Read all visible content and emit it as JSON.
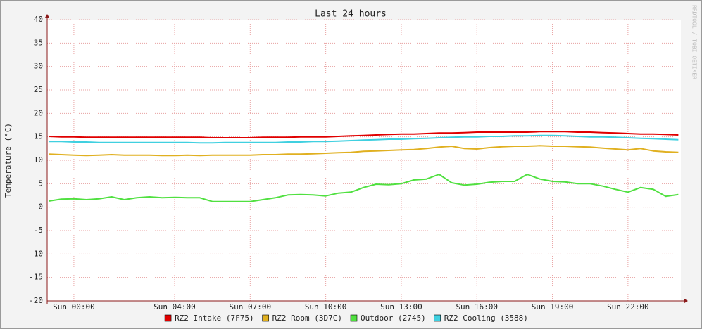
{
  "chart_data": {
    "type": "line",
    "title": "Last 24 hours",
    "y_label": "Temperature (°C)",
    "watermark": "RRDTOOL / TOBI OETIKER",
    "grid": true,
    "legend": "bottom",
    "xlim": [
      -1.06,
      24.1
    ],
    "xticks": [
      {
        "value": 0,
        "label": "Sun 00:00"
      },
      {
        "value": 4,
        "label": "Sun 04:00"
      },
      {
        "value": 7,
        "label": "Sun 07:00"
      },
      {
        "value": 10,
        "label": "Sun 10:00"
      },
      {
        "value": 13,
        "label": "Sun 13:00"
      },
      {
        "value": 16,
        "label": "Sun 16:00"
      },
      {
        "value": 19,
        "label": "Sun 19:00"
      },
      {
        "value": 22,
        "label": "Sun 22:00"
      }
    ],
    "ylim": [
      -20,
      40
    ],
    "yticks": [
      -20,
      -15,
      -10,
      -5,
      0,
      5,
      10,
      15,
      20,
      25,
      30,
      35,
      40
    ],
    "x": [
      -1,
      -0.5,
      0,
      0.5,
      1,
      1.5,
      2,
      2.5,
      3,
      3.5,
      4,
      4.5,
      5,
      5.5,
      6,
      6.5,
      7,
      7.5,
      8,
      8.5,
      9,
      9.5,
      10,
      10.5,
      11,
      11.5,
      12,
      12.5,
      13,
      13.5,
      14,
      14.5,
      15,
      15.5,
      16,
      16.5,
      17,
      17.5,
      18,
      18.5,
      19,
      19.5,
      20,
      20.5,
      21,
      21.5,
      22,
      22.5,
      23,
      23.5,
      24
    ],
    "series": [
      {
        "name": "RZ2 Intake (7F75)",
        "color": "#e00000",
        "values": [
          15.1,
          15.0,
          15.0,
          14.9,
          14.9,
          14.9,
          14.9,
          14.9,
          14.9,
          14.9,
          14.9,
          14.9,
          14.9,
          14.8,
          14.8,
          14.8,
          14.8,
          14.9,
          14.9,
          14.9,
          15.0,
          15.0,
          15.0,
          15.1,
          15.2,
          15.3,
          15.4,
          15.5,
          15.6,
          15.6,
          15.7,
          15.8,
          15.8,
          15.9,
          16.0,
          16.0,
          16.0,
          16.0,
          16.0,
          16.1,
          16.1,
          16.1,
          16.0,
          16.0,
          15.9,
          15.8,
          15.7,
          15.6,
          15.6,
          15.5,
          15.4
        ]
      },
      {
        "name": "RZ2 Room (3D7C)",
        "color": "#e0b020",
        "values": [
          11.3,
          11.2,
          11.1,
          11.0,
          11.1,
          11.2,
          11.1,
          11.1,
          11.1,
          11.0,
          11.0,
          11.1,
          11.0,
          11.1,
          11.1,
          11.1,
          11.1,
          11.2,
          11.2,
          11.3,
          11.3,
          11.4,
          11.5,
          11.6,
          11.7,
          11.9,
          12.0,
          12.1,
          12.2,
          12.3,
          12.5,
          12.8,
          13.0,
          12.5,
          12.4,
          12.7,
          12.9,
          13.0,
          13.0,
          13.1,
          13.0,
          13.0,
          12.9,
          12.8,
          12.6,
          12.4,
          12.2,
          12.5,
          12.0,
          11.8,
          11.7
        ]
      },
      {
        "name": "Outdoor (2745)",
        "color": "#50e040",
        "values": [
          1.3,
          1.7,
          1.8,
          1.6,
          1.8,
          2.2,
          1.6,
          2.0,
          2.2,
          2.0,
          2.1,
          2.0,
          2.0,
          1.2,
          1.2,
          1.2,
          1.2,
          1.6,
          2.0,
          2.6,
          2.7,
          2.6,
          2.4,
          3.0,
          3.2,
          4.2,
          4.9,
          4.8,
          5.0,
          5.8,
          6.0,
          7.0,
          5.2,
          4.7,
          4.9,
          5.3,
          5.5,
          5.5,
          7.0,
          6.0,
          5.5,
          5.4,
          5.0,
          5.0,
          4.5,
          3.8,
          3.2,
          4.2,
          3.8,
          2.3,
          2.7
        ]
      },
      {
        "name": "RZ2 Cooling (3588)",
        "color": "#40d0e0",
        "values": [
          14.0,
          14.0,
          13.9,
          13.9,
          13.8,
          13.8,
          13.8,
          13.8,
          13.8,
          13.8,
          13.8,
          13.8,
          13.7,
          13.7,
          13.8,
          13.8,
          13.8,
          13.8,
          13.8,
          13.9,
          13.9,
          14.0,
          14.0,
          14.1,
          14.2,
          14.3,
          14.4,
          14.5,
          14.5,
          14.6,
          14.7,
          14.8,
          14.9,
          15.0,
          15.0,
          15.1,
          15.1,
          15.2,
          15.2,
          15.3,
          15.3,
          15.2,
          15.1,
          15.0,
          15.0,
          14.9,
          14.8,
          14.7,
          14.6,
          14.5,
          14.4
        ]
      }
    ]
  }
}
